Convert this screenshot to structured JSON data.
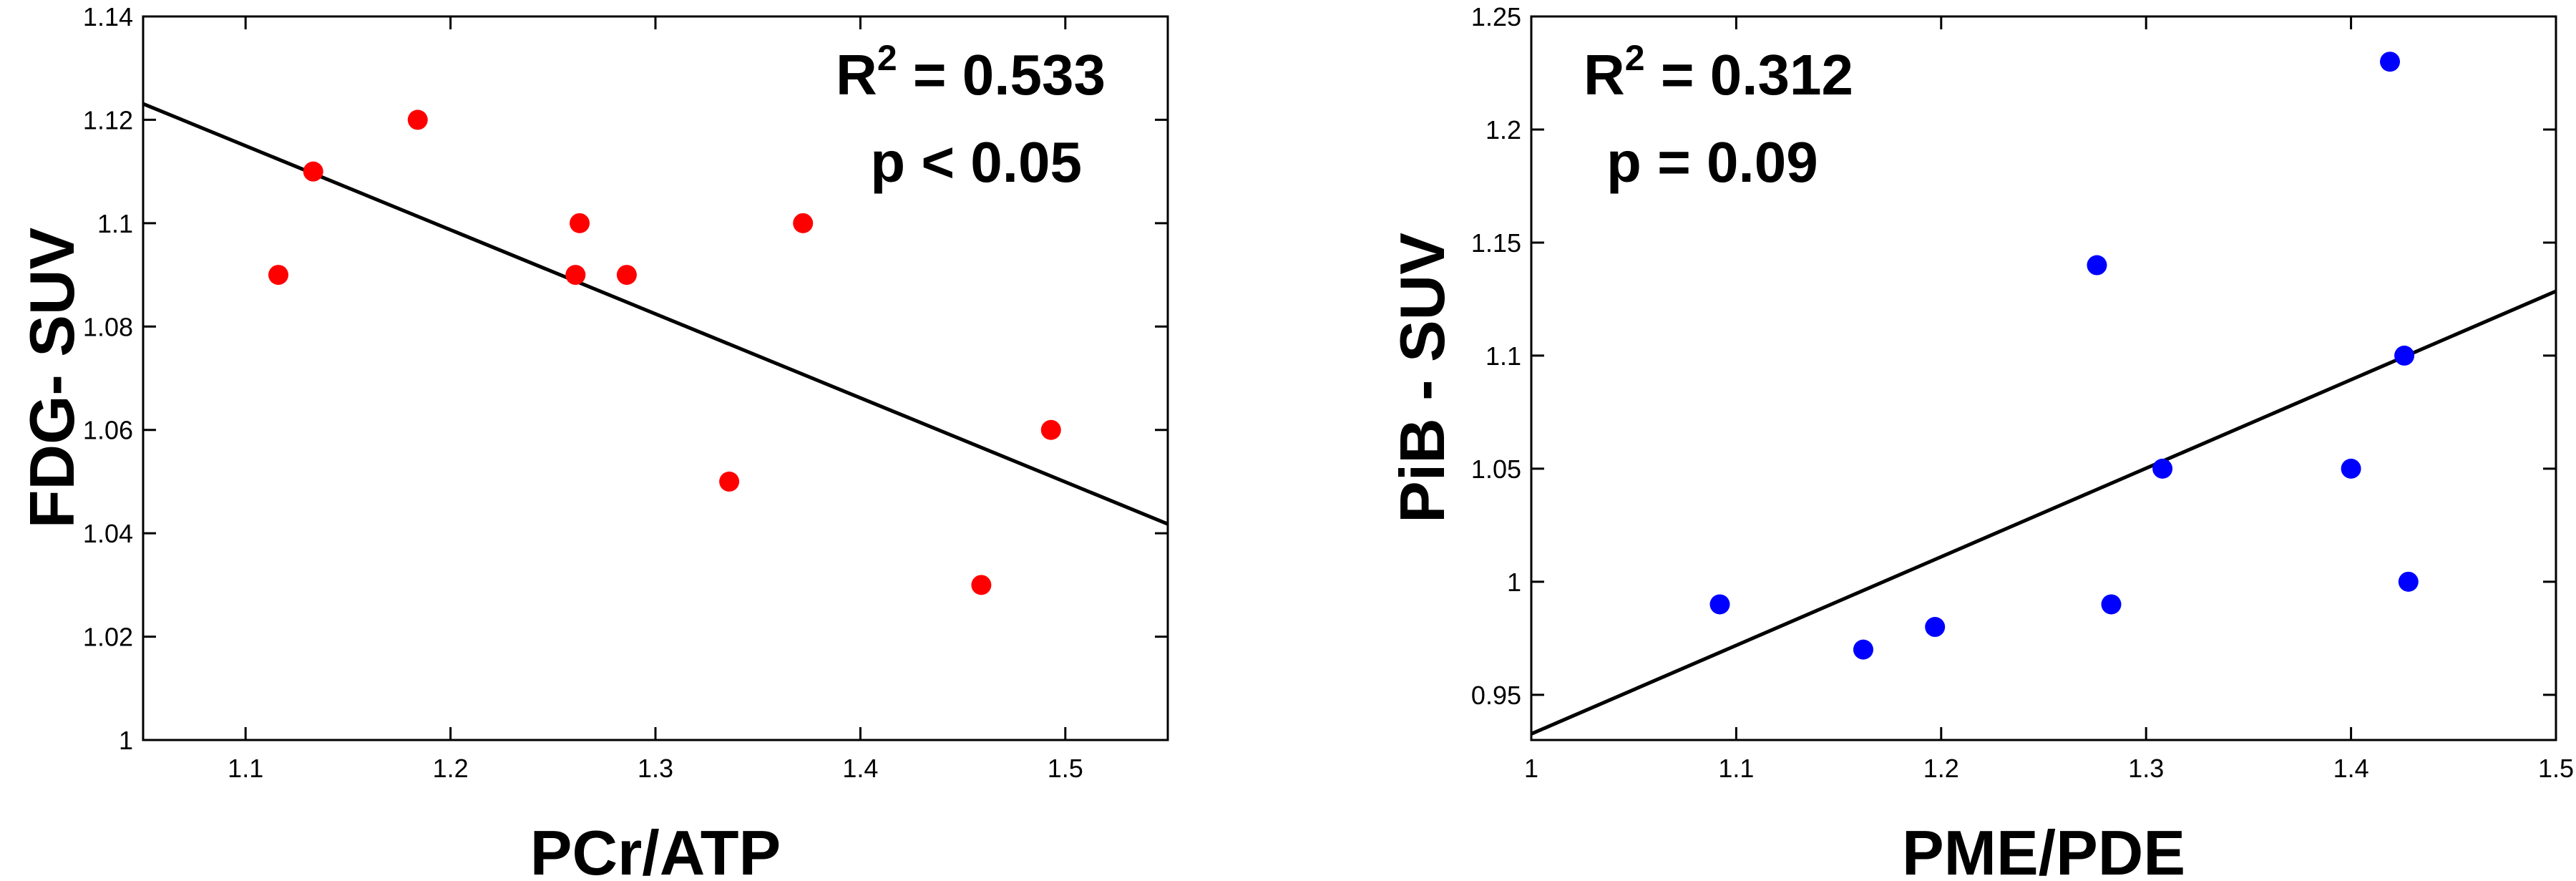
{
  "chart_data": [
    {
      "type": "scatter",
      "title": "",
      "xlabel": "PCr/ATP",
      "ylabel": "FDG- SUV",
      "xlim": [
        1.05,
        1.55
      ],
      "ylim": [
        1.0,
        1.14
      ],
      "xticks": [
        1.1,
        1.2,
        1.3,
        1.4,
        1.5
      ],
      "yticks": [
        1.0,
        1.02,
        1.04,
        1.06,
        1.08,
        1.1,
        1.12,
        1.14
      ],
      "xtick_labels": [
        "1.1",
        "1.2",
        "1.3",
        "1.4",
        "1.5"
      ],
      "ytick_labels": [
        "1",
        "1.02",
        "1.04",
        "1.06",
        "1.08",
        "1.1",
        "1.12",
        "1.14"
      ],
      "point_color": "#ff0000",
      "grid": false,
      "series": [
        {
          "x": [
            1.116,
            1.133,
            1.184,
            1.261,
            1.263,
            1.286,
            1.336,
            1.372,
            1.459,
            1.493
          ],
          "y": [
            1.09,
            1.11,
            1.12,
            1.09,
            1.1,
            1.09,
            1.05,
            1.1,
            1.03,
            1.06
          ]
        }
      ],
      "fit_line": {
        "x": [
          1.05,
          1.55
        ],
        "y": [
          1.1231,
          1.0418
        ],
        "color": "#000000"
      },
      "annotation": {
        "r2_prefix": "R",
        "r2_sup": "2",
        "r2_value": " = 0.533",
        "p_text": "p < 0.05"
      }
    },
    {
      "type": "scatter",
      "title": "",
      "xlabel": "PME/PDE",
      "ylabel": "PiB - SUV",
      "xlim": [
        1.0,
        1.5
      ],
      "ylim": [
        0.93,
        1.25
      ],
      "xticks": [
        1.0,
        1.1,
        1.2,
        1.3,
        1.4,
        1.5
      ],
      "yticks": [
        0.95,
        1.0,
        1.05,
        1.1,
        1.15,
        1.2,
        1.25
      ],
      "xtick_labels": [
        "1",
        "1.1",
        "1.2",
        "1.3",
        "1.4",
        "1.5"
      ],
      "ytick_labels": [
        "0.95",
        "1",
        "1.05",
        "1.1",
        "1.15",
        "1.2",
        "1.25"
      ],
      "point_color": "#0000ff",
      "grid": false,
      "series": [
        {
          "x": [
            1.092,
            1.162,
            1.197,
            1.276,
            1.283,
            1.308,
            1.4,
            1.419,
            1.426,
            1.428
          ],
          "y": [
            0.99,
            0.97,
            0.98,
            1.14,
            0.99,
            1.05,
            1.05,
            1.23,
            1.1,
            1.0
          ]
        }
      ],
      "fit_line": {
        "x": [
          1.0,
          1.5
        ],
        "y": [
          0.9327,
          1.1285
        ],
        "color": "#000000"
      },
      "annotation": {
        "r2_prefix": "R",
        "r2_sup": "2",
        "r2_value": " = 0.312",
        "p_text": "p =  0.09"
      }
    }
  ]
}
